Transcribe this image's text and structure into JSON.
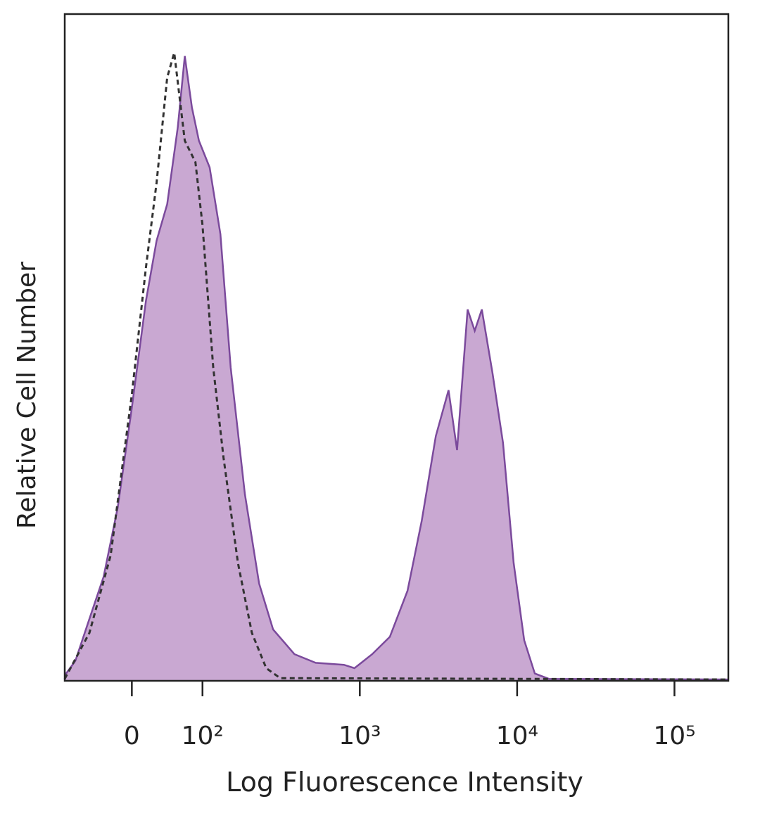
{
  "chart_data": {
    "type": "histogram-overlay",
    "xlabel": "Log Fluorescence Intensity",
    "ylabel": "Relative Cell Number",
    "xscale": "symlog",
    "linthresh": 100,
    "linscale": 0.449,
    "xlim": [
      -95,
      220000
    ],
    "ylim": [
      0,
      100
    ],
    "xticks": [
      {
        "value": 0,
        "label": "0"
      },
      {
        "value": 100,
        "label": "10²"
      },
      {
        "value": 1000,
        "label": "10³"
      },
      {
        "value": 10000,
        "label": "10⁴"
      },
      {
        "value": 100000,
        "label": "10⁵"
      }
    ],
    "series": [
      {
        "color": "#7b4a9c",
        "fill": "#c9a8d2",
        "style": "solid",
        "x": [
          -95,
          -80,
          -60,
          -40,
          -20,
          0,
          20,
          35,
          50,
          65,
          75,
          85,
          95,
          111,
          130,
          151,
          186,
          229,
          281,
          384,
          524,
          792,
          925,
          1198,
          1552,
          2011,
          2474,
          3042,
          3665,
          4150,
          4846,
          5375,
          5962,
          6966,
          8128,
          9503,
          11090,
          12950,
          15920,
          220000
        ],
        "values": [
          0.8,
          3,
          9.3,
          15.6,
          26,
          41,
          57,
          66,
          71.5,
          83,
          93.7,
          86,
          81,
          77,
          67,
          47,
          28,
          14.6,
          7.7,
          4,
          2.7,
          2.4,
          1.9,
          4,
          6.6,
          13.5,
          24,
          36.7,
          43.6,
          34.6,
          55.7,
          52.5,
          55.7,
          46.2,
          35.7,
          17.7,
          6.1,
          1.1,
          0.3,
          0.2
        ]
      },
      {
        "color": "#333333",
        "style": "dashed",
        "x": [
          -95,
          -60,
          -30,
          0,
          20,
          35,
          50,
          60,
          75,
          90,
          100,
          117,
          136,
          168,
          206,
          254,
          312,
          220000
        ],
        "values": [
          0.3,
          7.2,
          18.8,
          43,
          62,
          74.7,
          90.5,
          94.2,
          81,
          77.8,
          68.4,
          47,
          33.5,
          17.7,
          7.2,
          1.9,
          0.4,
          0.2
        ]
      }
    ]
  }
}
